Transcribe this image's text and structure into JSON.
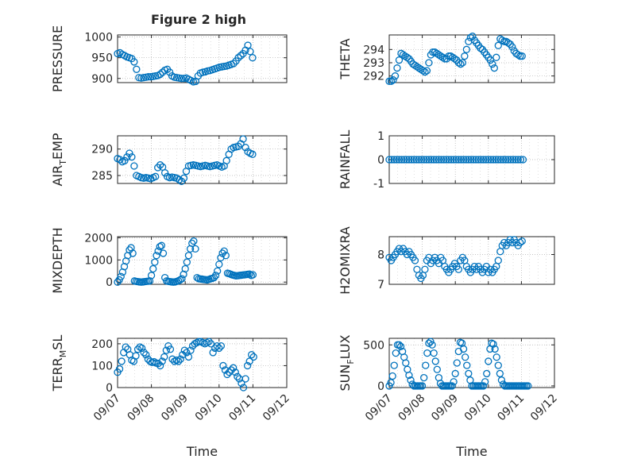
{
  "figure": {
    "title": "Figure 2 high"
  },
  "colors": {
    "marker": "#0072BD",
    "axis": "#262626",
    "grid": "#b0b0b0"
  },
  "chart_data": [
    {
      "id": "pressure",
      "type": "scatter",
      "ylabel": "PRESSURE",
      "xlim": [
        0,
        5
      ],
      "ylim": [
        890,
        1005
      ],
      "yticks": [
        900,
        950,
        1000
      ],
      "xticks": [
        "09/07",
        "09/08",
        "09/09",
        "09/10",
        "09/11",
        "09/12"
      ],
      "show_xticklabels": false,
      "grid": true,
      "x": [
        0.0,
        0.07,
        0.14,
        0.21,
        0.28,
        0.35,
        0.42,
        0.49,
        0.56,
        0.63,
        0.7,
        0.77,
        0.84,
        0.91,
        0.98,
        1.05,
        1.12,
        1.19,
        1.26,
        1.33,
        1.4,
        1.47,
        1.54,
        1.61,
        1.68,
        1.75,
        1.82,
        1.89,
        1.96,
        2.03,
        2.1,
        2.17,
        2.24,
        2.31,
        2.38,
        2.45,
        2.52,
        2.59,
        2.66,
        2.73,
        2.8,
        2.87,
        2.94,
        3.01,
        3.08,
        3.15,
        3.22,
        3.29,
        3.36,
        3.43,
        3.5,
        3.57,
        3.64,
        3.71,
        3.78,
        3.85,
        3.92,
        3.99
      ],
      "y": [
        960,
        962,
        958,
        955,
        952,
        950,
        948,
        940,
        922,
        902,
        901,
        902,
        903,
        904,
        904,
        905,
        906,
        907,
        910,
        915,
        920,
        922,
        915,
        906,
        903,
        902,
        901,
        900,
        900,
        901,
        898,
        895,
        892,
        893,
        906,
        913,
        915,
        916,
        918,
        919,
        921,
        923,
        925,
        927,
        928,
        929,
        930,
        932,
        934,
        936,
        942,
        950,
        955,
        960,
        968,
        980,
        965,
        950
      ]
    },
    {
      "id": "theta",
      "type": "scatter",
      "ylabel": "THETA",
      "xlim": [
        0,
        5
      ],
      "ylim": [
        291.5,
        295.1
      ],
      "yticks": [
        292,
        293,
        294
      ],
      "xticks": [
        "09/07",
        "09/08",
        "09/09",
        "09/10",
        "09/11",
        "09/12"
      ],
      "show_xticklabels": false,
      "grid": true,
      "x": [
        0.0,
        0.06,
        0.12,
        0.18,
        0.24,
        0.3,
        0.36,
        0.42,
        0.48,
        0.54,
        0.6,
        0.66,
        0.72,
        0.78,
        0.84,
        0.9,
        0.96,
        1.02,
        1.08,
        1.14,
        1.2,
        1.26,
        1.32,
        1.38,
        1.44,
        1.5,
        1.56,
        1.62,
        1.68,
        1.74,
        1.8,
        1.86,
        1.92,
        1.98,
        2.04,
        2.1,
        2.16,
        2.22,
        2.28,
        2.34,
        2.4,
        2.46,
        2.52,
        2.58,
        2.64,
        2.7,
        2.76,
        2.82,
        2.88,
        2.94,
        3.0,
        3.06,
        3.12,
        3.18,
        3.24,
        3.3,
        3.36,
        3.42,
        3.48,
        3.54,
        3.6,
        3.66,
        3.72,
        3.78,
        3.84,
        3.9,
        3.96,
        4.02
      ],
      "y": [
        291.6,
        291.6,
        291.7,
        292.0,
        292.6,
        293.2,
        293.7,
        293.6,
        293.5,
        293.4,
        293.3,
        293.1,
        292.9,
        292.8,
        292.7,
        292.6,
        292.5,
        292.4,
        292.3,
        292.4,
        293.0,
        293.6,
        293.8,
        293.8,
        293.7,
        293.6,
        293.5,
        293.4,
        293.3,
        293.3,
        293.5,
        293.5,
        293.4,
        293.3,
        293.2,
        293.0,
        292.9,
        293.0,
        293.5,
        294.0,
        294.6,
        294.9,
        295.0,
        294.7,
        294.5,
        294.3,
        294.1,
        294.0,
        293.8,
        293.6,
        293.4,
        293.2,
        292.9,
        292.6,
        293.4,
        294.3,
        294.8,
        294.7,
        294.6,
        294.6,
        294.5,
        294.4,
        294.2,
        293.9,
        293.7,
        293.6,
        293.5,
        293.5
      ]
    },
    {
      "id": "air_temp",
      "type": "scatter",
      "ylabel": "AIR_TEMP",
      "xlim": [
        0,
        5
      ],
      "ylim": [
        283.5,
        292.5
      ],
      "yticks": [
        285,
        290
      ],
      "xticks": [
        "09/07",
        "09/08",
        "09/09",
        "09/10",
        "09/11",
        "09/12"
      ],
      "show_xticklabels": false,
      "grid": true,
      "x": [
        0.0,
        0.07,
        0.14,
        0.21,
        0.28,
        0.35,
        0.42,
        0.49,
        0.56,
        0.63,
        0.7,
        0.77,
        0.84,
        0.91,
        0.98,
        1.05,
        1.12,
        1.19,
        1.26,
        1.33,
        1.4,
        1.47,
        1.54,
        1.61,
        1.68,
        1.75,
        1.82,
        1.89,
        1.96,
        2.03,
        2.1,
        2.17,
        2.24,
        2.31,
        2.38,
        2.45,
        2.52,
        2.59,
        2.66,
        2.73,
        2.8,
        2.87,
        2.94,
        3.01,
        3.08,
        3.15,
        3.22,
        3.29,
        3.36,
        3.43,
        3.5,
        3.57,
        3.64,
        3.71,
        3.78,
        3.85,
        3.92,
        3.99
      ],
      "y": [
        288.2,
        288.0,
        287.6,
        287.8,
        288.5,
        289.2,
        288.5,
        286.8,
        285.0,
        284.8,
        284.6,
        284.5,
        284.6,
        284.5,
        284.4,
        284.6,
        284.8,
        286.5,
        287.0,
        286.6,
        285.5,
        284.8,
        284.6,
        284.7,
        284.6,
        284.5,
        284.2,
        283.9,
        284.5,
        285.8,
        286.8,
        286.9,
        287.0,
        286.9,
        286.8,
        286.7,
        286.8,
        286.9,
        286.8,
        286.7,
        286.8,
        286.9,
        287.0,
        286.8,
        286.6,
        286.8,
        287.8,
        289.0,
        290.0,
        290.3,
        290.4,
        290.5,
        291.0,
        291.9,
        290.3,
        289.5,
        289.2,
        289.0
      ]
    },
    {
      "id": "rainfall",
      "type": "scatter",
      "ylabel": "RAINFALL",
      "xlim": [
        0,
        5
      ],
      "ylim": [
        -1,
        1
      ],
      "yticks": [
        -1,
        0,
        1
      ],
      "xticks": [
        "09/07",
        "09/08",
        "09/09",
        "09/10",
        "09/11",
        "09/12"
      ],
      "show_xticklabels": false,
      "grid": true,
      "x": [
        0.0,
        0.075,
        0.15,
        0.225,
        0.3,
        0.375,
        0.45,
        0.525,
        0.6,
        0.675,
        0.75,
        0.825,
        0.9,
        0.975,
        1.05,
        1.125,
        1.2,
        1.275,
        1.35,
        1.425,
        1.5,
        1.575,
        1.65,
        1.725,
        1.8,
        1.875,
        1.95,
        2.025,
        2.1,
        2.175,
        2.25,
        2.325,
        2.4,
        2.475,
        2.55,
        2.625,
        2.7,
        2.775,
        2.85,
        2.925,
        3.0,
        3.075,
        3.15,
        3.225,
        3.3,
        3.375,
        3.45,
        3.525,
        3.6,
        3.675,
        3.75,
        3.825,
        3.9,
        3.975,
        4.05
      ],
      "y": [
        0,
        0,
        0,
        0,
        0,
        0,
        0,
        0,
        0,
        0,
        0,
        0,
        0,
        0,
        0,
        0,
        0,
        0,
        0,
        0,
        0,
        0,
        0,
        0,
        0,
        0,
        0,
        0,
        0,
        0,
        0,
        0,
        0,
        0,
        0,
        0,
        0,
        0,
        0,
        0,
        0,
        0,
        0,
        0,
        0,
        0,
        0,
        0,
        0,
        0,
        0,
        0,
        0,
        0,
        0
      ]
    },
    {
      "id": "mixdepth",
      "type": "scatter",
      "ylabel": "MIXDEPTH",
      "xlim": [
        0,
        5
      ],
      "ylim": [
        -100,
        2050
      ],
      "yticks": [
        0,
        1000,
        2000
      ],
      "xticks": [
        "09/07",
        "09/08",
        "09/09",
        "09/10",
        "09/11",
        "09/12"
      ],
      "show_xticklabels": false,
      "grid": true,
      "x": [
        0.0,
        0.05,
        0.1,
        0.15,
        0.2,
        0.25,
        0.3,
        0.35,
        0.4,
        0.45,
        0.5,
        0.55,
        0.6,
        0.65,
        0.7,
        0.75,
        0.8,
        0.85,
        0.9,
        0.95,
        1.0,
        1.05,
        1.1,
        1.15,
        1.2,
        1.25,
        1.3,
        1.35,
        1.4,
        1.45,
        1.5,
        1.55,
        1.6,
        1.65,
        1.7,
        1.75,
        1.8,
        1.85,
        1.9,
        1.95,
        2.0,
        2.05,
        2.1,
        2.15,
        2.2,
        2.25,
        2.3,
        2.35,
        2.4,
        2.45,
        2.5,
        2.55,
        2.6,
        2.65,
        2.7,
        2.75,
        2.8,
        2.85,
        2.9,
        2.95,
        3.0,
        3.05,
        3.1,
        3.15,
        3.2,
        3.25,
        3.3,
        3.35,
        3.4,
        3.45,
        3.5,
        3.55,
        3.6,
        3.65,
        3.7,
        3.75,
        3.8,
        3.85,
        3.9,
        3.95,
        4.0
      ],
      "y": [
        0,
        100,
        250,
        450,
        700,
        950,
        1200,
        1450,
        1550,
        1300,
        50,
        30,
        20,
        10,
        0,
        10,
        20,
        30,
        40,
        50,
        300,
        600,
        900,
        1200,
        1400,
        1600,
        1650,
        1300,
        200,
        50,
        30,
        20,
        10,
        0,
        10,
        30,
        60,
        100,
        150,
        350,
        600,
        900,
        1200,
        1500,
        1750,
        1850,
        1500,
        200,
        150,
        140,
        130,
        120,
        110,
        100,
        120,
        150,
        170,
        200,
        300,
        500,
        800,
        1100,
        1300,
        1400,
        1200,
        400,
        380,
        350,
        320,
        300,
        280,
        290,
        300,
        310,
        320,
        330,
        340,
        350,
        360,
        300,
        330
      ]
    },
    {
      "id": "h2omixra",
      "type": "scatter",
      "ylabel": "H2OMIXRA",
      "xlim": [
        0,
        5
      ],
      "ylim": [
        7,
        8.6
      ],
      "yticks": [
        7,
        8
      ],
      "xticks": [
        "09/07",
        "09/08",
        "09/09",
        "09/10",
        "09/11",
        "09/12"
      ],
      "show_xticklabels": false,
      "grid": true,
      "x": [
        0.0,
        0.06,
        0.12,
        0.18,
        0.24,
        0.3,
        0.36,
        0.42,
        0.48,
        0.54,
        0.6,
        0.66,
        0.72,
        0.78,
        0.84,
        0.9,
        0.96,
        1.02,
        1.08,
        1.14,
        1.2,
        1.26,
        1.32,
        1.38,
        1.44,
        1.5,
        1.56,
        1.62,
        1.68,
        1.74,
        1.8,
        1.86,
        1.92,
        1.98,
        2.04,
        2.1,
        2.16,
        2.22,
        2.28,
        2.34,
        2.4,
        2.46,
        2.52,
        2.58,
        2.64,
        2.7,
        2.76,
        2.82,
        2.88,
        2.94,
        3.0,
        3.06,
        3.12,
        3.18,
        3.24,
        3.3,
        3.36,
        3.42,
        3.48,
        3.54,
        3.6,
        3.66,
        3.72,
        3.78,
        3.84,
        3.9,
        3.96,
        4.02
      ],
      "y": [
        7.9,
        7.8,
        7.9,
        8.0,
        8.1,
        8.2,
        8.1,
        8.2,
        8.1,
        8.0,
        8.1,
        8.0,
        7.9,
        7.8,
        7.5,
        7.3,
        7.2,
        7.3,
        7.5,
        7.8,
        7.9,
        7.7,
        7.8,
        7.9,
        7.8,
        7.7,
        7.9,
        7.8,
        7.6,
        7.5,
        7.4,
        7.5,
        7.6,
        7.7,
        7.6,
        7.5,
        7.8,
        7.9,
        7.8,
        7.6,
        7.5,
        7.4,
        7.5,
        7.6,
        7.5,
        7.6,
        7.5,
        7.4,
        7.5,
        7.6,
        7.4,
        7.5,
        7.4,
        7.5,
        7.6,
        7.8,
        8.1,
        8.3,
        8.4,
        8.3,
        8.4,
        8.5,
        8.4,
        8.5,
        8.4,
        8.3,
        8.4,
        8.45
      ]
    },
    {
      "id": "terr_msl",
      "type": "scatter",
      "ylabel": "TERR_MSL",
      "xlim": [
        0,
        5
      ],
      "ylim": [
        0,
        225
      ],
      "yticks": [
        0,
        100,
        200
      ],
      "xticks": [
        "09/07",
        "09/08",
        "09/09",
        "09/10",
        "09/11",
        "09/12"
      ],
      "show_xticklabels": true,
      "xlabel": "Time",
      "grid": true,
      "x": [
        0.0,
        0.06,
        0.12,
        0.18,
        0.24,
        0.3,
        0.36,
        0.42,
        0.48,
        0.54,
        0.6,
        0.66,
        0.72,
        0.78,
        0.84,
        0.9,
        0.96,
        1.02,
        1.08,
        1.14,
        1.2,
        1.26,
        1.32,
        1.38,
        1.44,
        1.5,
        1.56,
        1.62,
        1.68,
        1.74,
        1.8,
        1.86,
        1.92,
        1.98,
        2.04,
        2.1,
        2.16,
        2.22,
        2.28,
        2.34,
        2.4,
        2.46,
        2.52,
        2.58,
        2.64,
        2.7,
        2.76,
        2.82,
        2.88,
        2.94,
        3.0,
        3.06,
        3.12,
        3.18,
        3.24,
        3.3,
        3.36,
        3.42,
        3.48,
        3.54,
        3.6,
        3.66,
        3.72,
        3.78,
        3.84,
        3.9,
        3.96,
        4.02
      ],
      "y": [
        70,
        85,
        120,
        160,
        185,
        175,
        150,
        125,
        120,
        145,
        175,
        185,
        180,
        160,
        150,
        130,
        120,
        115,
        118,
        112,
        110,
        100,
        120,
        140,
        170,
        190,
        175,
        130,
        120,
        125,
        120,
        130,
        150,
        170,
        160,
        140,
        170,
        190,
        200,
        205,
        210,
        210,
        205,
        200,
        205,
        210,
        200,
        160,
        180,
        190,
        180,
        190,
        100,
        80,
        60,
        70,
        80,
        90,
        70,
        50,
        40,
        20,
        0,
        40,
        100,
        120,
        150,
        140
      ]
    },
    {
      "id": "sun_flux",
      "type": "scatter",
      "ylabel": "SUN_FLUX",
      "xlim": [
        0,
        5
      ],
      "ylim": [
        -20,
        580
      ],
      "yticks": [
        0,
        500
      ],
      "xticks": [
        "09/07",
        "09/08",
        "09/09",
        "09/10",
        "09/11",
        "09/12"
      ],
      "show_xticklabels": true,
      "xlabel": "Time",
      "grid": true,
      "x": [
        0.0,
        0.05,
        0.1,
        0.15,
        0.2,
        0.25,
        0.3,
        0.35,
        0.4,
        0.45,
        0.5,
        0.55,
        0.6,
        0.65,
        0.7,
        0.75,
        0.8,
        0.85,
        0.9,
        0.95,
        1.0,
        1.05,
        1.1,
        1.15,
        1.2,
        1.25,
        1.3,
        1.35,
        1.4,
        1.45,
        1.5,
        1.55,
        1.6,
        1.65,
        1.7,
        1.75,
        1.8,
        1.85,
        1.9,
        1.95,
        2.0,
        2.05,
        2.1,
        2.15,
        2.2,
        2.25,
        2.3,
        2.35,
        2.4,
        2.45,
        2.5,
        2.55,
        2.6,
        2.65,
        2.7,
        2.75,
        2.8,
        2.85,
        2.9,
        2.95,
        3.0,
        3.05,
        3.1,
        3.15,
        3.2,
        3.25,
        3.3,
        3.35,
        3.4,
        3.45,
        3.5,
        3.55,
        3.6,
        3.65,
        3.7,
        3.75,
        3.8,
        3.85,
        3.9,
        3.95,
        4.0,
        4.05,
        4.1,
        4.15,
        4.2
      ],
      "y": [
        0,
        40,
        120,
        250,
        400,
        500,
        500,
        480,
        420,
        350,
        280,
        200,
        130,
        70,
        20,
        0,
        0,
        0,
        0,
        0,
        0,
        100,
        250,
        400,
        520,
        540,
        500,
        400,
        300,
        200,
        100,
        30,
        0,
        0,
        0,
        0,
        0,
        0,
        0,
        50,
        150,
        280,
        420,
        530,
        520,
        450,
        350,
        250,
        150,
        70,
        0,
        0,
        0,
        0,
        0,
        0,
        0,
        0,
        50,
        150,
        300,
        450,
        520,
        510,
        450,
        350,
        250,
        150,
        70,
        20,
        0,
        0,
        0,
        0,
        0,
        0,
        0,
        0,
        0,
        0,
        0,
        0,
        0,
        0,
        0
      ]
    }
  ]
}
